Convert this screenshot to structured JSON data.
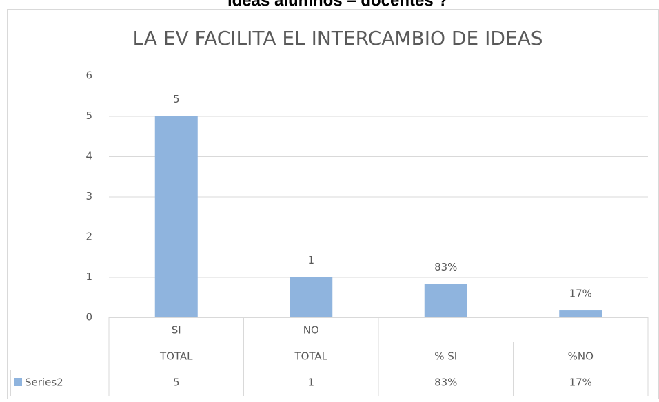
{
  "header_text": "ideas alumnos – docentes ?",
  "chart_data": {
    "type": "bar",
    "title": "LA EV FACILITA EL INTERCAMBIO DE IDEAS",
    "categories": [
      "TOTAL",
      "TOTAL",
      "% SI",
      "%NO"
    ],
    "category_groups": [
      "SI",
      "NO",
      null,
      null
    ],
    "series": [
      {
        "name": "Series2",
        "color": "#8fb4de",
        "values": [
          5,
          1,
          0.83,
          0.17
        ],
        "value_labels": [
          "5",
          "1",
          "83%",
          "17%"
        ]
      }
    ],
    "ylim": [
      0,
      6
    ],
    "yticks": [
      0,
      1,
      2,
      3,
      4,
      5,
      6
    ],
    "grid": true,
    "data_table": true
  }
}
